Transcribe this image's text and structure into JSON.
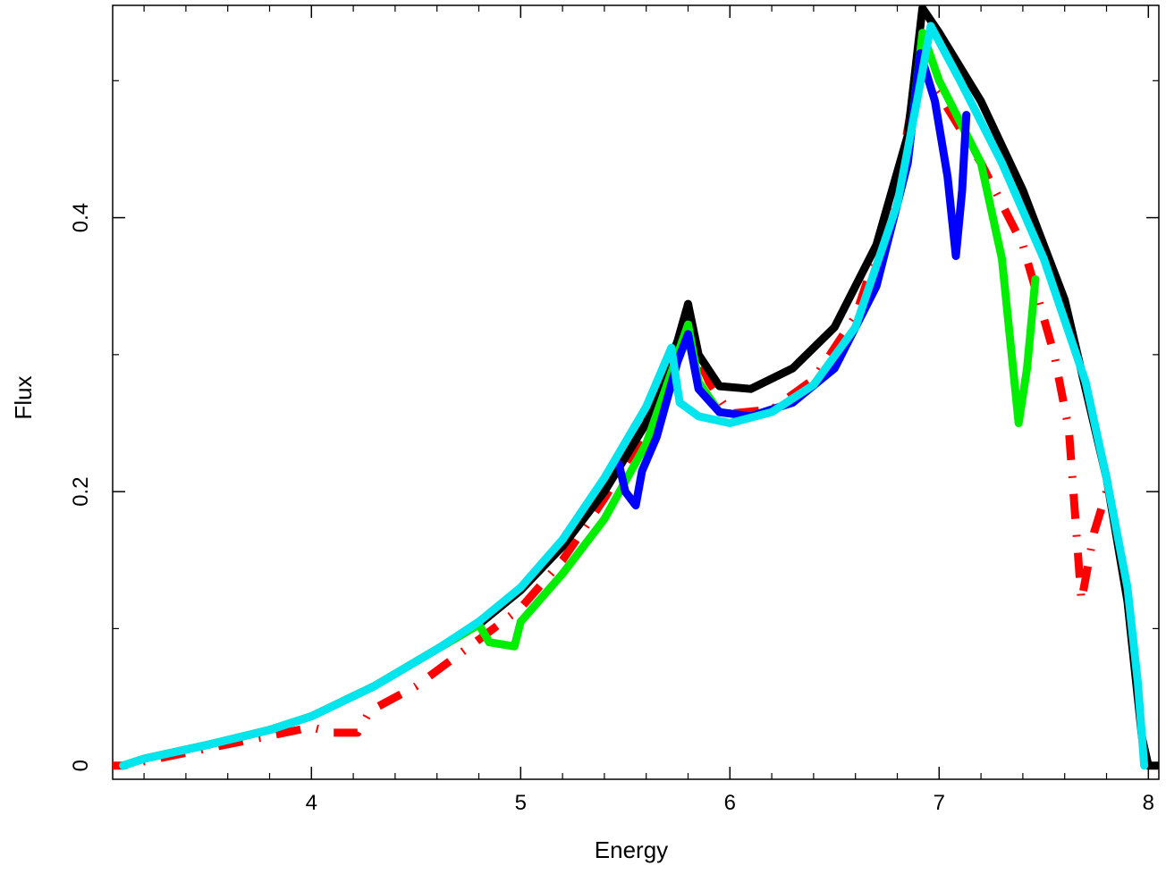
{
  "chart_data": {
    "type": "line",
    "title": "",
    "xlabel": "Energy",
    "ylabel": "Flux",
    "xlim": [
      3.05,
      8.05
    ],
    "ylim": [
      -0.01,
      0.555
    ],
    "grid": false,
    "x_ticks": [
      {
        "value": 4,
        "label": "4"
      },
      {
        "value": 5,
        "label": "5"
      },
      {
        "value": 6,
        "label": "6"
      },
      {
        "value": 7,
        "label": "7"
      },
      {
        "value": 8,
        "label": "8"
      }
    ],
    "x_minor_ticks": [
      3.2,
      3.4,
      3.6,
      3.8,
      4.2,
      4.4,
      4.6,
      4.8,
      5.2,
      5.4,
      5.6,
      5.8,
      6.2,
      6.4,
      6.6,
      6.8,
      7.2,
      7.4,
      7.6,
      7.8
    ],
    "y_ticks": [
      {
        "value": 0,
        "label": "0"
      },
      {
        "value": 0.2,
        "label": "0.2"
      },
      {
        "value": 0.4,
        "label": "0.4"
      }
    ],
    "y_minor_ticks": [
      0.1,
      0.3,
      0.5
    ],
    "series": [
      {
        "color": "#ff0000",
        "dash": "dashdot",
        "points": [
          [
            3.0,
            0.0
          ],
          [
            3.1,
            0.0
          ],
          [
            4.0,
            0.028
          ],
          [
            4.1,
            0.024
          ],
          [
            4.22,
            0.024
          ],
          [
            4.28,
            0.04
          ],
          [
            4.5,
            0.058
          ],
          [
            4.8,
            0.092
          ],
          [
            5.0,
            0.115
          ],
          [
            5.2,
            0.15
          ],
          [
            5.4,
            0.195
          ],
          [
            5.6,
            0.245
          ],
          [
            5.8,
            0.315
          ],
          [
            5.9,
            0.28
          ],
          [
            6.0,
            0.257
          ],
          [
            6.2,
            0.26
          ],
          [
            6.4,
            0.282
          ],
          [
            6.6,
            0.328
          ],
          [
            6.8,
            0.42
          ],
          [
            6.9,
            0.51
          ],
          [
            7.0,
            0.49
          ],
          [
            7.2,
            0.44
          ],
          [
            7.4,
            0.38
          ],
          [
            7.55,
            0.3
          ],
          [
            7.62,
            0.245
          ],
          [
            7.68,
            0.12
          ],
          [
            7.74,
            0.17
          ],
          [
            7.8,
            0.2
          ]
        ]
      },
      {
        "color": "#000000",
        "dash": "solid",
        "points": [
          [
            3.1,
            0.0
          ],
          [
            3.2,
            0.005
          ],
          [
            3.5,
            0.015
          ],
          [
            3.8,
            0.026
          ],
          [
            4.0,
            0.036
          ],
          [
            4.3,
            0.058
          ],
          [
            4.6,
            0.085
          ],
          [
            4.8,
            0.103
          ],
          [
            5.0,
            0.128
          ],
          [
            5.2,
            0.16
          ],
          [
            5.4,
            0.2
          ],
          [
            5.6,
            0.25
          ],
          [
            5.75,
            0.31
          ],
          [
            5.8,
            0.337
          ],
          [
            5.85,
            0.3
          ],
          [
            5.95,
            0.277
          ],
          [
            6.1,
            0.275
          ],
          [
            6.3,
            0.29
          ],
          [
            6.5,
            0.32
          ],
          [
            6.7,
            0.38
          ],
          [
            6.85,
            0.46
          ],
          [
            6.92,
            0.553
          ],
          [
            7.0,
            0.535
          ],
          [
            7.2,
            0.485
          ],
          [
            7.4,
            0.42
          ],
          [
            7.6,
            0.34
          ],
          [
            7.8,
            0.21
          ],
          [
            7.9,
            0.12
          ],
          [
            7.97,
            0.02
          ],
          [
            8.0,
            0.0
          ],
          [
            8.05,
            0.0
          ]
        ]
      },
      {
        "color": "#00ee00",
        "dash": "solid",
        "points": [
          [
            3.1,
            0.0
          ],
          [
            3.2,
            0.005
          ],
          [
            3.5,
            0.015
          ],
          [
            3.8,
            0.026
          ],
          [
            4.0,
            0.036
          ],
          [
            4.3,
            0.058
          ],
          [
            4.6,
            0.085
          ],
          [
            4.8,
            0.103
          ],
          [
            4.85,
            0.09
          ],
          [
            4.97,
            0.087
          ],
          [
            5.0,
            0.105
          ],
          [
            5.2,
            0.14
          ],
          [
            5.4,
            0.18
          ],
          [
            5.6,
            0.235
          ],
          [
            5.75,
            0.3
          ],
          [
            5.8,
            0.322
          ],
          [
            5.85,
            0.28
          ],
          [
            5.95,
            0.258
          ],
          [
            6.1,
            0.255
          ],
          [
            6.3,
            0.265
          ],
          [
            6.5,
            0.29
          ],
          [
            6.7,
            0.35
          ],
          [
            6.85,
            0.44
          ],
          [
            6.92,
            0.535
          ],
          [
            7.0,
            0.5
          ],
          [
            7.2,
            0.44
          ],
          [
            7.3,
            0.37
          ],
          [
            7.38,
            0.25
          ],
          [
            7.42,
            0.29
          ],
          [
            7.46,
            0.355
          ]
        ]
      },
      {
        "color": "#0000ff",
        "dash": "solid",
        "points": [
          [
            5.47,
            0.22
          ],
          [
            5.5,
            0.2
          ],
          [
            5.55,
            0.19
          ],
          [
            5.58,
            0.215
          ],
          [
            5.65,
            0.24
          ],
          [
            5.75,
            0.295
          ],
          [
            5.8,
            0.315
          ],
          [
            5.85,
            0.275
          ],
          [
            5.95,
            0.258
          ],
          [
            6.1,
            0.255
          ],
          [
            6.3,
            0.265
          ],
          [
            6.5,
            0.29
          ],
          [
            6.7,
            0.35
          ],
          [
            6.85,
            0.44
          ],
          [
            6.91,
            0.52
          ],
          [
            6.98,
            0.485
          ],
          [
            7.04,
            0.43
          ],
          [
            7.08,
            0.372
          ],
          [
            7.11,
            0.42
          ],
          [
            7.13,
            0.475
          ]
        ]
      },
      {
        "color": "#00e5ee",
        "dash": "solid",
        "points": [
          [
            3.1,
            0.0
          ],
          [
            3.2,
            0.005
          ],
          [
            3.5,
            0.015
          ],
          [
            3.8,
            0.026
          ],
          [
            4.0,
            0.036
          ],
          [
            4.3,
            0.058
          ],
          [
            4.6,
            0.085
          ],
          [
            4.8,
            0.105
          ],
          [
            5.0,
            0.13
          ],
          [
            5.2,
            0.165
          ],
          [
            5.4,
            0.21
          ],
          [
            5.6,
            0.262
          ],
          [
            5.72,
            0.305
          ],
          [
            5.76,
            0.265
          ],
          [
            5.85,
            0.255
          ],
          [
            6.0,
            0.25
          ],
          [
            6.2,
            0.258
          ],
          [
            6.4,
            0.278
          ],
          [
            6.6,
            0.32
          ],
          [
            6.8,
            0.41
          ],
          [
            6.9,
            0.49
          ],
          [
            6.96,
            0.54
          ],
          [
            7.1,
            0.5
          ],
          [
            7.3,
            0.44
          ],
          [
            7.5,
            0.37
          ],
          [
            7.7,
            0.28
          ],
          [
            7.8,
            0.21
          ],
          [
            7.9,
            0.13
          ],
          [
            7.95,
            0.06
          ],
          [
            7.98,
            0.0
          ]
        ]
      }
    ]
  }
}
